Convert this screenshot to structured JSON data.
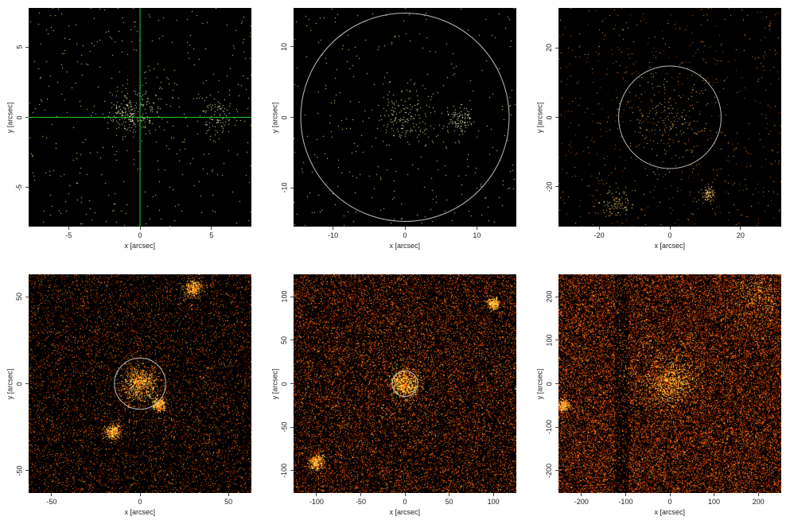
{
  "panels": [
    {
      "id": "p1",
      "xlim": [
        -7.8,
        7.8
      ],
      "ylim": [
        -7.8,
        7.8
      ],
      "xticks": [
        -5,
        0,
        5
      ],
      "yticks": [
        -5,
        0,
        5
      ],
      "xlabel": "x [arcsec]",
      "ylabel": "y [arcsec]",
      "overlay": {
        "type": "crosshair",
        "x": 0,
        "y": 0,
        "color": "#22cc22"
      },
      "density": 0.0045,
      "sources": [
        [
          0,
          0.7,
          1.0
        ],
        [
          -1,
          0.2,
          0.6
        ],
        [
          5.5,
          0,
          0.8
        ]
      ],
      "palette": "yellow"
    },
    {
      "id": "p2",
      "xlim": [
        -15.5,
        15.5
      ],
      "ylim": [
        -15.5,
        15.5
      ],
      "xticks": [
        -10,
        0,
        10
      ],
      "yticks": [
        -10,
        0,
        10
      ],
      "xlabel": "x [arcsec]",
      "ylabel": "y [arcsec]",
      "overlay": {
        "type": "circle",
        "x": 0,
        "y": 0,
        "r": 14.5,
        "color": "#bbbbbb"
      },
      "density": 0.004,
      "sources": [
        [
          0,
          0,
          2.0
        ],
        [
          7.5,
          -0.5,
          1.0
        ]
      ],
      "palette": "yellow"
    },
    {
      "id": "p3",
      "xlim": [
        -31.5,
        31.5
      ],
      "ylim": [
        -31.5,
        31.5
      ],
      "xticks": [
        -20,
        0,
        20
      ],
      "yticks": [
        -20,
        0,
        20
      ],
      "xlabel": "x [arcsec]",
      "ylabel": "y [arcsec]",
      "overlay": {
        "type": "circle",
        "x": 0,
        "y": 0,
        "r": 14.5,
        "color": "#bbbbbb"
      },
      "density": 0.009,
      "sources": [
        [
          0,
          0,
          6.0
        ],
        [
          11,
          -22,
          1.0
        ],
        [
          -15,
          -25,
          2.0
        ]
      ],
      "palette": "orange"
    },
    {
      "id": "p4",
      "xlim": [
        -63,
        63
      ],
      "ylim": [
        -63,
        63
      ],
      "xticks": [
        -50,
        0,
        50
      ],
      "yticks": [
        -50,
        0,
        50
      ],
      "xlabel": "x [arcsec]",
      "ylabel": "y [arcsec]",
      "overlay": {
        "type": "circle",
        "x": 0,
        "y": 0,
        "r": 14.5,
        "color": "#bbbbbb"
      },
      "density": 0.12,
      "sources": [
        [
          0,
          0,
          5.0
        ],
        [
          11,
          -12,
          2.0
        ],
        [
          -15,
          -28,
          2.0
        ],
        [
          30,
          55,
          2.5
        ]
      ],
      "palette": "fire"
    },
    {
      "id": "p5",
      "xlim": [
        -126,
        126
      ],
      "ylim": [
        -126,
        126
      ],
      "xticks": [
        -100,
        -50,
        0,
        50,
        100
      ],
      "yticks": [
        -100,
        -50,
        0,
        50,
        100
      ],
      "xlabel": "x [arcsec]",
      "ylabel": "y [arcsec]",
      "overlay": {
        "type": "circle",
        "x": 0,
        "y": 0,
        "r": 14.5,
        "color": "#bbbbbb"
      },
      "density": 0.24,
      "sources": [
        [
          0,
          0,
          8.0
        ],
        [
          0,
          30,
          45.0
        ],
        [
          100,
          92,
          3.0
        ],
        [
          -100,
          -90,
          4.0
        ]
      ],
      "palette": "fire"
    },
    {
      "id": "p6",
      "xlim": [
        -252,
        252
      ],
      "ylim": [
        -252,
        252
      ],
      "xticks": [
        -200,
        -100,
        0,
        100,
        200
      ],
      "yticks": [
        -200,
        -100,
        0,
        100,
        200
      ],
      "xlabel": "x [arcsec]",
      "ylabel": "y [arcsec]",
      "overlay": {
        "type": "none"
      },
      "density": 0.42,
      "sources": [
        [
          0,
          0,
          25.0
        ],
        [
          0,
          40,
          60.0
        ],
        [
          -240,
          -50,
          6.0
        ],
        [
          200,
          200,
          30.0
        ]
      ],
      "palette": "fire"
    }
  ]
}
